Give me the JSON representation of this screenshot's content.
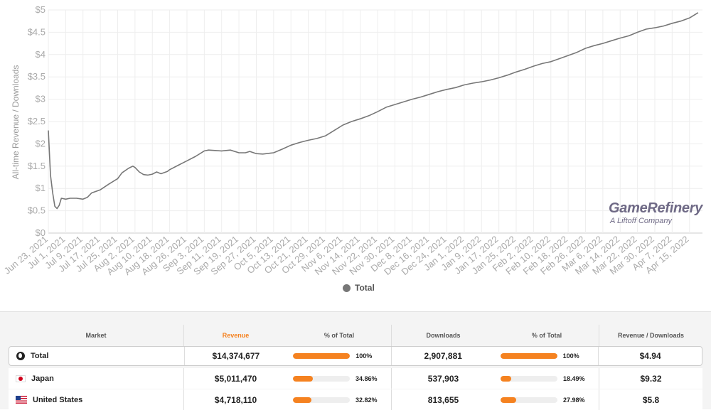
{
  "chart_data": {
    "type": "line",
    "ylabel": "All-time Revenue / Downloads",
    "ylim": [
      0,
      5
    ],
    "y_ticks": [
      "$0",
      "$0.5",
      "$1",
      "$1.5",
      "$2",
      "$2.5",
      "$3",
      "$3.5",
      "$4",
      "$4.5",
      "$5"
    ],
    "x_ticks": [
      "Jun 23, 2021",
      "Jul 1, 2021",
      "Jul 9, 2021",
      "Jul 17, 2021",
      "Jul 25, 2021",
      "Aug 2, 2021",
      "Aug 10, 2021",
      "Aug 18, 2021",
      "Aug 26, 2021",
      "Sep 3, 2021",
      "Sep 11, 2021",
      "Sep 19, 2021",
      "Sep 27, 2021",
      "Oct 5, 2021",
      "Oct 13, 2021",
      "Oct 21, 2021",
      "Oct 29, 2021",
      "Nov 6, 2021",
      "Nov 14, 2021",
      "Nov 22, 2021",
      "Nov 30, 2021",
      "Dec 8, 2021",
      "Dec 16, 2021",
      "Dec 24, 2021",
      "Jan 1, 2022",
      "Jan 9, 2022",
      "Jan 17, 2022",
      "Jan 25, 2022",
      "Feb 2, 2022",
      "Feb 10, 2022",
      "Feb 18, 2022",
      "Feb 26, 2022",
      "Mar 6, 2022",
      "Mar 14, 2022",
      "Mar 22, 2022",
      "Mar 30, 2022",
      "Apr 7, 2022",
      "Apr 15, 2022"
    ],
    "grid": true,
    "series": [
      {
        "name": "Total",
        "color": "#777777",
        "points": [
          [
            "Jun 23, 2021",
            2.3
          ],
          [
            "Jun 24, 2021",
            1.3
          ],
          [
            "Jun 25, 2021",
            0.9
          ],
          [
            "Jun 26, 2021",
            0.6
          ],
          [
            "Jun 27, 2021",
            0.55
          ],
          [
            "Jun 28, 2021",
            0.62
          ],
          [
            "Jun 29, 2021",
            0.78
          ],
          [
            "Jul 1, 2021",
            0.76
          ],
          [
            "Jul 3, 2021",
            0.78
          ],
          [
            "Jul 6, 2021",
            0.78
          ],
          [
            "Jul 9, 2021",
            0.76
          ],
          [
            "Jul 11, 2021",
            0.8
          ],
          [
            "Jul 13, 2021",
            0.9
          ],
          [
            "Jul 17, 2021",
            0.97
          ],
          [
            "Jul 21, 2021",
            1.1
          ],
          [
            "Jul 25, 2021",
            1.22
          ],
          [
            "Jul 27, 2021",
            1.35
          ],
          [
            "Jul 30, 2021",
            1.45
          ],
          [
            "Aug 1, 2021",
            1.5
          ],
          [
            "Aug 2, 2021",
            1.47
          ],
          [
            "Aug 4, 2021",
            1.37
          ],
          [
            "Aug 6, 2021",
            1.31
          ],
          [
            "Aug 8, 2021",
            1.3
          ],
          [
            "Aug 10, 2021",
            1.32
          ],
          [
            "Aug 12, 2021",
            1.37
          ],
          [
            "Aug 14, 2021",
            1.33
          ],
          [
            "Aug 17, 2021",
            1.38
          ],
          [
            "Aug 18, 2021",
            1.42
          ],
          [
            "Aug 22, 2021",
            1.52
          ],
          [
            "Aug 26, 2021",
            1.62
          ],
          [
            "Aug 30, 2021",
            1.72
          ],
          [
            "Sep 3, 2021",
            1.84
          ],
          [
            "Sep 5, 2021",
            1.86
          ],
          [
            "Sep 8, 2021",
            1.85
          ],
          [
            "Sep 11, 2021",
            1.84
          ],
          [
            "Sep 15, 2021",
            1.86
          ],
          [
            "Sep 19, 2021",
            1.8
          ],
          [
            "Sep 22, 2021",
            1.8
          ],
          [
            "Sep 24, 2021",
            1.83
          ],
          [
            "Sep 27, 2021",
            1.78
          ],
          [
            "Sep 30, 2021",
            1.77
          ],
          [
            "Oct 5, 2021",
            1.8
          ],
          [
            "Oct 9, 2021",
            1.88
          ],
          [
            "Oct 13, 2021",
            1.97
          ],
          [
            "Oct 17, 2021",
            2.03
          ],
          [
            "Oct 21, 2021",
            2.08
          ],
          [
            "Oct 25, 2021",
            2.12
          ],
          [
            "Oct 29, 2021",
            2.18
          ],
          [
            "Nov 2, 2021",
            2.3
          ],
          [
            "Nov 6, 2021",
            2.42
          ],
          [
            "Nov 10, 2021",
            2.5
          ],
          [
            "Nov 14, 2021",
            2.56
          ],
          [
            "Nov 18, 2021",
            2.63
          ],
          [
            "Nov 22, 2021",
            2.72
          ],
          [
            "Nov 26, 2021",
            2.82
          ],
          [
            "Nov 30, 2021",
            2.88
          ],
          [
            "Dec 4, 2021",
            2.94
          ],
          [
            "Dec 8, 2021",
            3.0
          ],
          [
            "Dec 12, 2021",
            3.05
          ],
          [
            "Dec 16, 2021",
            3.11
          ],
          [
            "Dec 20, 2021",
            3.17
          ],
          [
            "Dec 24, 2021",
            3.22
          ],
          [
            "Dec 28, 2021",
            3.26
          ],
          [
            "Jan 1, 2022",
            3.32
          ],
          [
            "Jan 5, 2022",
            3.36
          ],
          [
            "Jan 9, 2022",
            3.39
          ],
          [
            "Jan 13, 2022",
            3.43
          ],
          [
            "Jan 17, 2022",
            3.48
          ],
          [
            "Jan 21, 2022",
            3.54
          ],
          [
            "Jan 25, 2022",
            3.61
          ],
          [
            "Jan 29, 2022",
            3.67
          ],
          [
            "Feb 2, 2022",
            3.74
          ],
          [
            "Feb 6, 2022",
            3.8
          ],
          [
            "Feb 10, 2022",
            3.84
          ],
          [
            "Feb 14, 2022",
            3.91
          ],
          [
            "Feb 18, 2022",
            3.98
          ],
          [
            "Feb 22, 2022",
            4.05
          ],
          [
            "Feb 26, 2022",
            4.14
          ],
          [
            "Mar 2, 2022",
            4.2
          ],
          [
            "Mar 6, 2022",
            4.25
          ],
          [
            "Mar 10, 2022",
            4.31
          ],
          [
            "Mar 14, 2022",
            4.37
          ],
          [
            "Mar 18, 2022",
            4.42
          ],
          [
            "Mar 22, 2022",
            4.5
          ],
          [
            "Mar 26, 2022",
            4.57
          ],
          [
            "Mar 30, 2022",
            4.6
          ],
          [
            "Apr 3, 2022",
            4.64
          ],
          [
            "Apr 7, 2022",
            4.7
          ],
          [
            "Apr 11, 2022",
            4.75
          ],
          [
            "Apr 15, 2022",
            4.82
          ],
          [
            "Apr 19, 2022",
            4.94
          ]
        ]
      }
    ],
    "legend": "bottom-center"
  },
  "legend": {
    "label": "Total"
  },
  "logo": {
    "main": "GameRefinery",
    "sub": "A Liftoff Company"
  },
  "table": {
    "headers": {
      "market": "Market",
      "revenue": "Revenue",
      "rev_pct": "% of Total",
      "downloads": "Downloads",
      "dl_pct": "% of Total",
      "rev_per_dl": "Revenue / Downloads"
    },
    "active_sort_color": "#f58220",
    "rows": [
      {
        "market": "Total",
        "flag": "globe-icon",
        "revenue": "$14,374,677",
        "rev_pct": "100%",
        "rev_pct_value": 1.0,
        "downloads": "2,907,881",
        "dl_pct": "100%",
        "dl_pct_value": 1.0,
        "rev_per_dl": "$4.94"
      },
      {
        "market": "Japan",
        "flag": "japan-flag-icon",
        "revenue": "$5,011,470",
        "rev_pct": "34.86%",
        "rev_pct_value": 0.3486,
        "downloads": "537,903",
        "dl_pct": "18.49%",
        "dl_pct_value": 0.1849,
        "rev_per_dl": "$9.32"
      },
      {
        "market": "United States",
        "flag": "us-flag-icon",
        "revenue": "$4,718,110",
        "rev_pct": "32.82%",
        "rev_pct_value": 0.3282,
        "downloads": "813,655",
        "dl_pct": "27.98%",
        "dl_pct_value": 0.2798,
        "rev_per_dl": "$5.8"
      }
    ]
  }
}
